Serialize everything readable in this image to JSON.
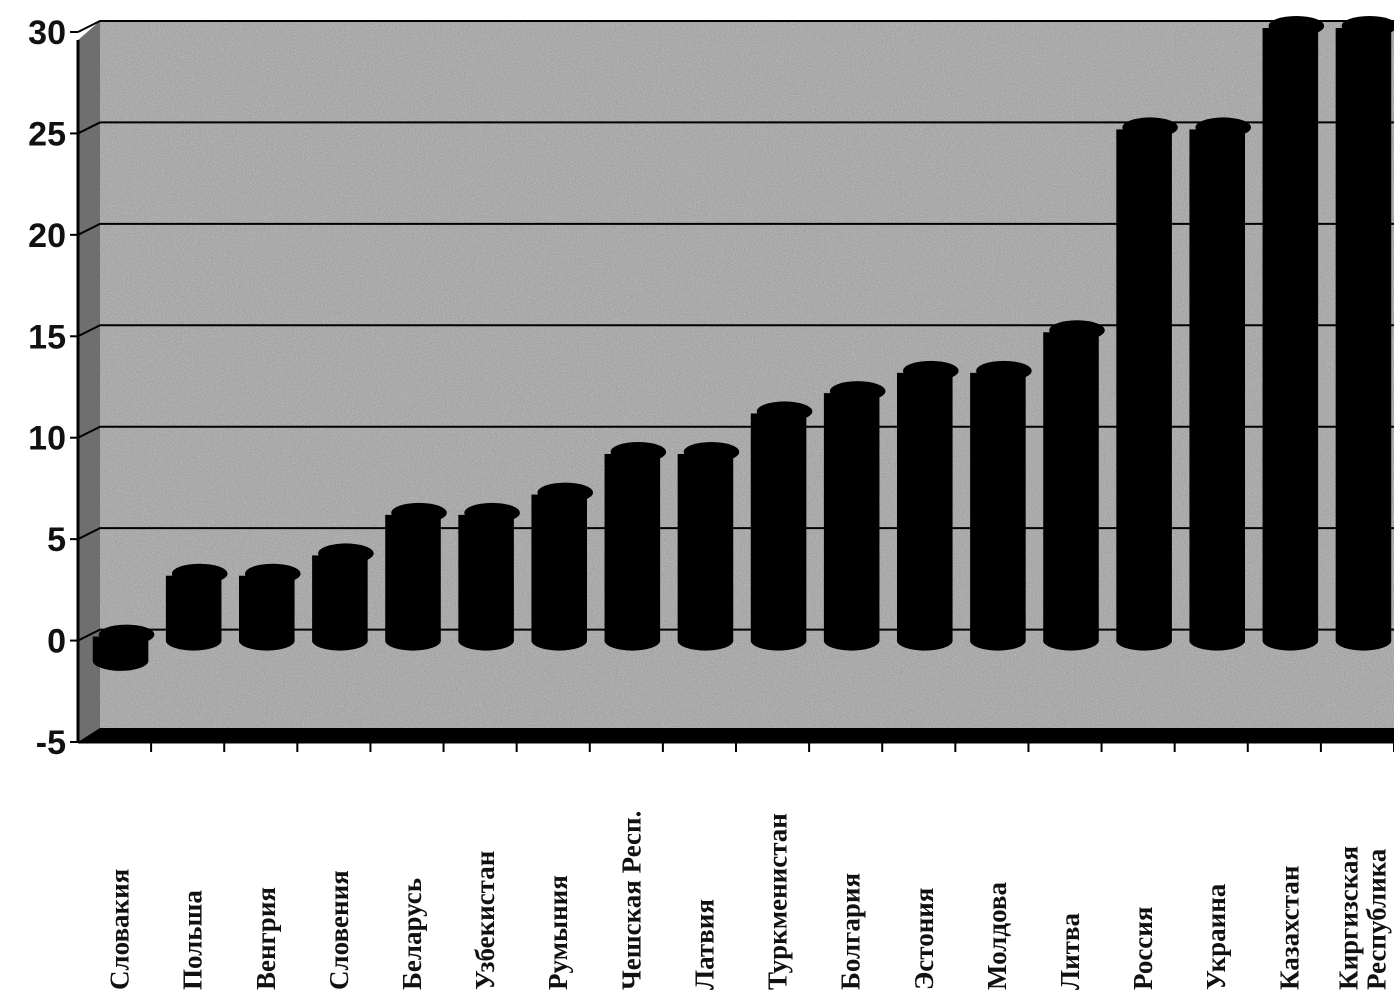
{
  "chart_data": {
    "type": "bar",
    "title": "",
    "xlabel": "",
    "ylabel": "",
    "ylim": [
      -5,
      30
    ],
    "yticks": [
      30,
      25,
      20,
      15,
      10,
      5,
      0,
      -5
    ],
    "grid": true,
    "legend": "none",
    "categories": [
      "Словакия",
      "Польша",
      "Венгрия",
      "Словения",
      "Беларусь",
      "Узбекистан",
      "Румыния",
      "Чешская Респ.",
      "Латвия",
      "Туркменистан",
      "Болгария",
      "Эстония",
      "Молдова",
      "Литва",
      "Россия",
      "Украина",
      "Казахстан",
      [
        "Киргизская",
        "Республика"
      ]
    ],
    "values": [
      -1,
      3,
      3,
      4,
      6,
      6,
      7,
      9,
      9,
      11,
      12,
      13,
      13,
      15,
      25,
      25,
      30,
      30
    ],
    "colors": {
      "bar": "#000000",
      "grid": "#000000",
      "background": "#9a9a9a"
    }
  }
}
